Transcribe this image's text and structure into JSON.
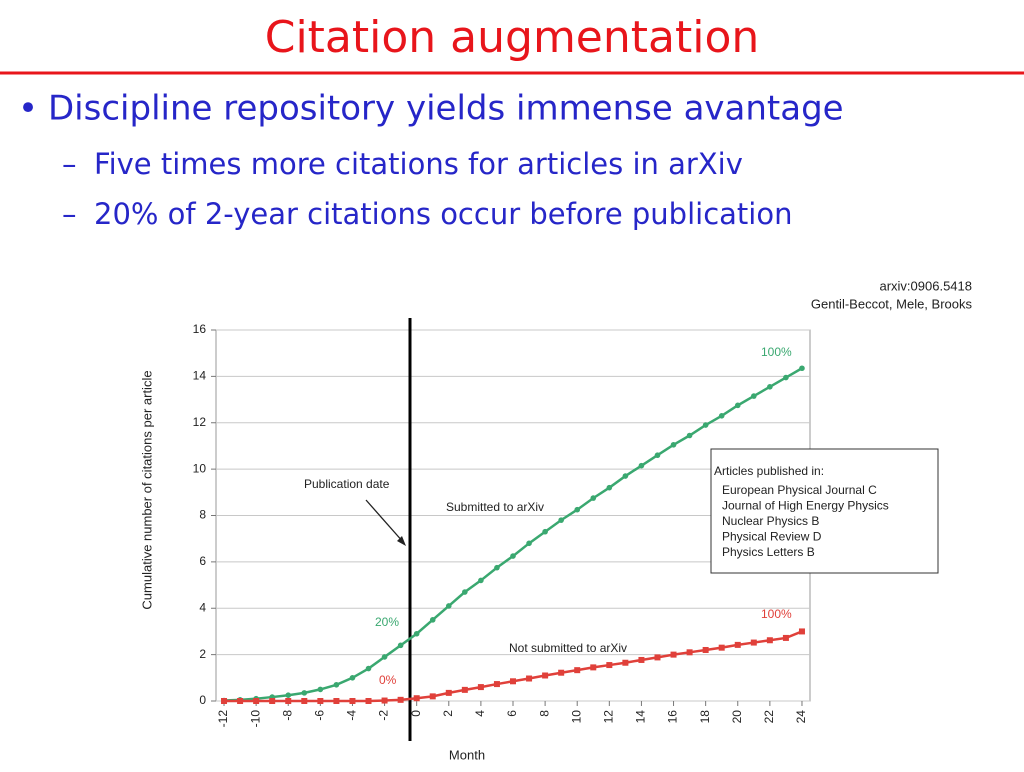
{
  "slide": {
    "title": "Citation augmentation",
    "bullet": "Discipline repository yields immense avantage",
    "sub_bullets": [
      "Five times more citations for articles in arXiv",
      "20% of 2-year citations occur before publication"
    ]
  },
  "chart_data": {
    "type": "line",
    "source": [
      "arxiv:0906.5418",
      "Gentil-Beccot, Mele, Brooks"
    ],
    "x_label": "Month",
    "y_label": "Cumulative number of citations per article",
    "x": [
      -12,
      -11,
      -10,
      -9,
      -8,
      -7,
      -6,
      -5,
      -4,
      -3,
      -2,
      -1,
      0,
      1,
      2,
      3,
      4,
      5,
      6,
      7,
      8,
      9,
      10,
      11,
      12,
      13,
      14,
      15,
      16,
      17,
      18,
      19,
      20,
      21,
      22,
      23,
      24
    ],
    "series": [
      {
        "name": "Submitted to arXiv",
        "color": "#3aa870",
        "marker": "circle",
        "values": [
          0.02,
          0.05,
          0.1,
          0.17,
          0.25,
          0.35,
          0.5,
          0.7,
          1.0,
          1.4,
          1.9,
          2.4,
          2.9,
          3.5,
          4.1,
          4.7,
          5.2,
          5.75,
          6.25,
          6.8,
          7.3,
          7.8,
          8.25,
          8.75,
          9.2,
          9.7,
          10.15,
          10.6,
          11.05,
          11.45,
          11.9,
          12.3,
          12.75,
          13.15,
          13.55,
          13.95,
          14.35
        ]
      },
      {
        "name": "Not submitted to arXiv",
        "color": "#e0403a",
        "marker": "square",
        "values": [
          0,
          0,
          0,
          0,
          0,
          0,
          0,
          0,
          0,
          0,
          0.02,
          0.05,
          0.12,
          0.2,
          0.35,
          0.48,
          0.6,
          0.73,
          0.85,
          0.97,
          1.1,
          1.22,
          1.33,
          1.45,
          1.55,
          1.65,
          1.77,
          1.88,
          2.0,
          2.1,
          2.2,
          2.3,
          2.42,
          2.52,
          2.62,
          2.72,
          3.0
        ]
      }
    ],
    "annotations": {
      "publication": "Publication date",
      "green_start": "20%",
      "green_end": "100%",
      "red_start": "0%",
      "red_end": "100%"
    },
    "legend_box": {
      "title": "Articles published in:",
      "items": [
        "European Physical Journal C",
        "Journal of High Energy Physics",
        "Nuclear Physics B",
        "Physical Review D",
        "Physics Letters B"
      ]
    },
    "xlim": [
      -12.5,
      24.5
    ],
    "ylim": [
      0,
      16
    ],
    "xticks": [
      -12,
      -10,
      -8,
      -6,
      -4,
      -2,
      0,
      2,
      4,
      6,
      8,
      10,
      12,
      14,
      16,
      18,
      20,
      22,
      24
    ],
    "yticks": [
      0,
      2,
      4,
      6,
      8,
      10,
      12,
      14,
      16
    ],
    "grid": true
  }
}
